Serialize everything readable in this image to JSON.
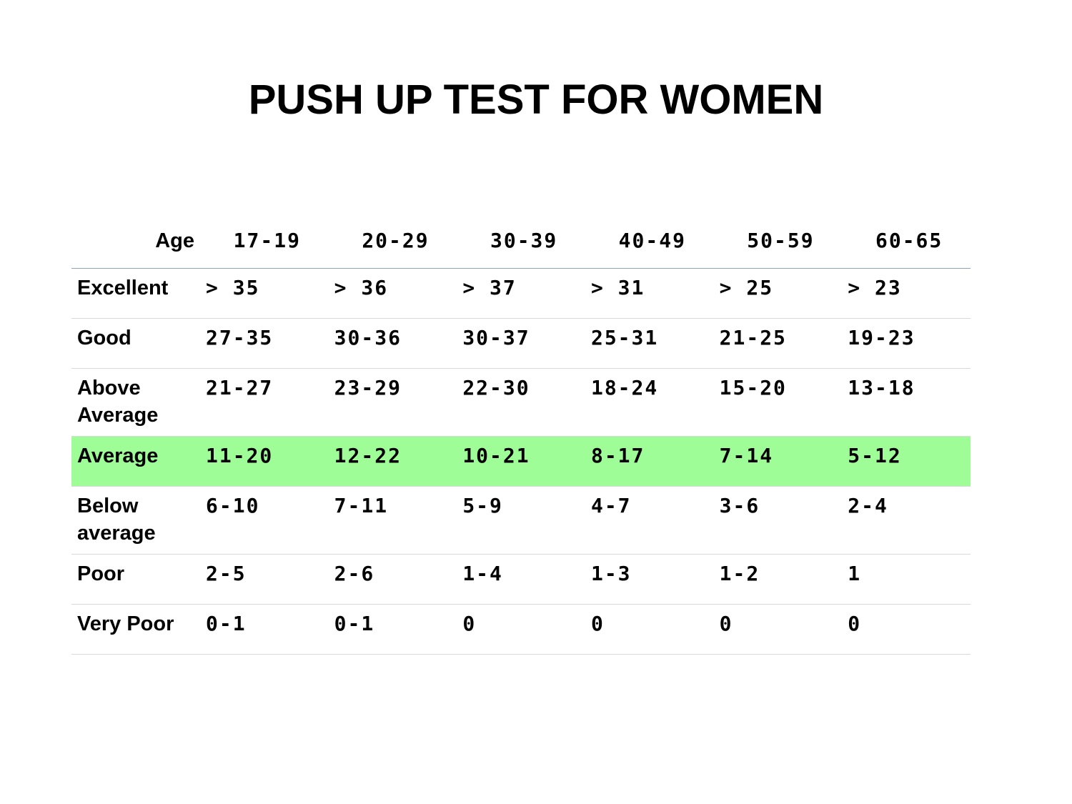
{
  "title": "PUSH UP TEST FOR WOMEN",
  "table": {
    "header_label": "Age",
    "columns": [
      "17-19",
      "20-29",
      "30-39",
      "40-49",
      "50-59",
      "60-65"
    ],
    "rows": [
      {
        "label": "Excellent",
        "values": [
          "> 35",
          "> 36",
          "> 37",
          "> 31",
          "> 25",
          "> 23"
        ]
      },
      {
        "label": "Good",
        "values": [
          "27-35",
          "30-36",
          "30-37",
          "25-31",
          "21-25",
          "19-23"
        ]
      },
      {
        "label": "Above Average",
        "values": [
          "21-27",
          "23-29",
          "22-30",
          "18-24",
          "15-20",
          "13-18"
        ]
      },
      {
        "label": "Average",
        "values": [
          "11-20",
          "12-22",
          "10-21",
          "8-17",
          "7-14",
          "5-12"
        ]
      },
      {
        "label": "Below average",
        "values": [
          "6-10",
          "7-11",
          "5-9",
          "4-7",
          "3-6",
          "2-4"
        ]
      },
      {
        "label": "Poor",
        "values": [
          "2-5",
          "2-6",
          "1-4",
          "1-3",
          "1-2",
          "1"
        ]
      },
      {
        "label": "Very Poor",
        "values": [
          "0-1",
          "0-1",
          "0",
          "0",
          "0",
          "0"
        ]
      }
    ]
  },
  "colors": {
    "highlight_row": "#9ffd97",
    "header_rule": "#8ea3b8",
    "row_rule": "#d9d9d9"
  }
}
